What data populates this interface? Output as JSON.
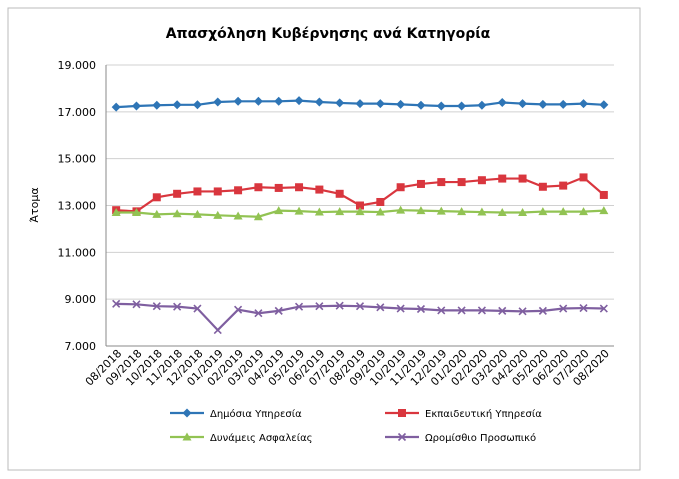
{
  "chart_data": {
    "type": "line",
    "title": "Απασχόληση Κυβέρνησης ανά Κατηγορία",
    "y_label": "Άτομα",
    "categories": [
      "08/2018",
      "09/2018",
      "10/2018",
      "11/2018",
      "12/2018",
      "01/2019",
      "02/2019",
      "03/2019",
      "04/2019",
      "05/2019",
      "06/2019",
      "07/2019",
      "08/2019",
      "09/2019",
      "10/2019",
      "11/2019",
      "12/2019",
      "01/2020",
      "02/2020",
      "03/2020",
      "04/2020",
      "05/2020",
      "06/2020",
      "07/2020",
      "08/2020"
    ],
    "series": [
      {
        "name": "Δημόσια Υπηρεσία",
        "color": "#2e75b6",
        "marker": "diamond",
        "values": [
          17200,
          17250,
          17280,
          17300,
          17300,
          17420,
          17450,
          17450,
          17450,
          17480,
          17420,
          17380,
          17350,
          17350,
          17320,
          17280,
          17250,
          17250,
          17280,
          17400,
          17350,
          17320,
          17320,
          17350,
          17300
        ]
      },
      {
        "name": "Εκπαιδευτική Υπηρεσία",
        "color": "#d9363e",
        "marker": "square",
        "values": [
          12800,
          12750,
          13350,
          13500,
          13600,
          13600,
          13650,
          13780,
          13750,
          13780,
          13680,
          13500,
          13000,
          13150,
          13780,
          13920,
          14000,
          14000,
          14080,
          14150,
          14150,
          13800,
          13850,
          14200,
          13450
        ]
      },
      {
        "name": "Δυνάμεις Ασφαλείας",
        "color": "#92c353",
        "marker": "triangle",
        "values": [
          12700,
          12700,
          12620,
          12650,
          12620,
          12580,
          12550,
          12520,
          12780,
          12760,
          12720,
          12740,
          12740,
          12720,
          12800,
          12780,
          12760,
          12740,
          12720,
          12700,
          12700,
          12740,
          12740,
          12740,
          12780
        ]
      },
      {
        "name": "Ωρομίσθιο Προσωπικό",
        "color": "#7f5fa0",
        "marker": "x",
        "values": [
          8800,
          8780,
          8700,
          8680,
          8600,
          7680,
          8550,
          8400,
          8500,
          8680,
          8700,
          8720,
          8700,
          8650,
          8600,
          8580,
          8520,
          8520,
          8520,
          8500,
          8480,
          8500,
          8600,
          8620,
          8600
        ]
      }
    ],
    "ylim": [
      7000,
      19000
    ],
    "yticks": [
      {
        "value": 7000,
        "label": "7.000"
      },
      {
        "value": 9000,
        "label": "9.000"
      },
      {
        "value": 11000,
        "label": "11.000"
      },
      {
        "value": 13000,
        "label": "13.000"
      },
      {
        "value": 15000,
        "label": "15.000"
      },
      {
        "value": 17000,
        "label": "17.000"
      },
      {
        "value": 19000,
        "label": "19.000"
      }
    ],
    "grid": true,
    "legend": "bottom"
  }
}
